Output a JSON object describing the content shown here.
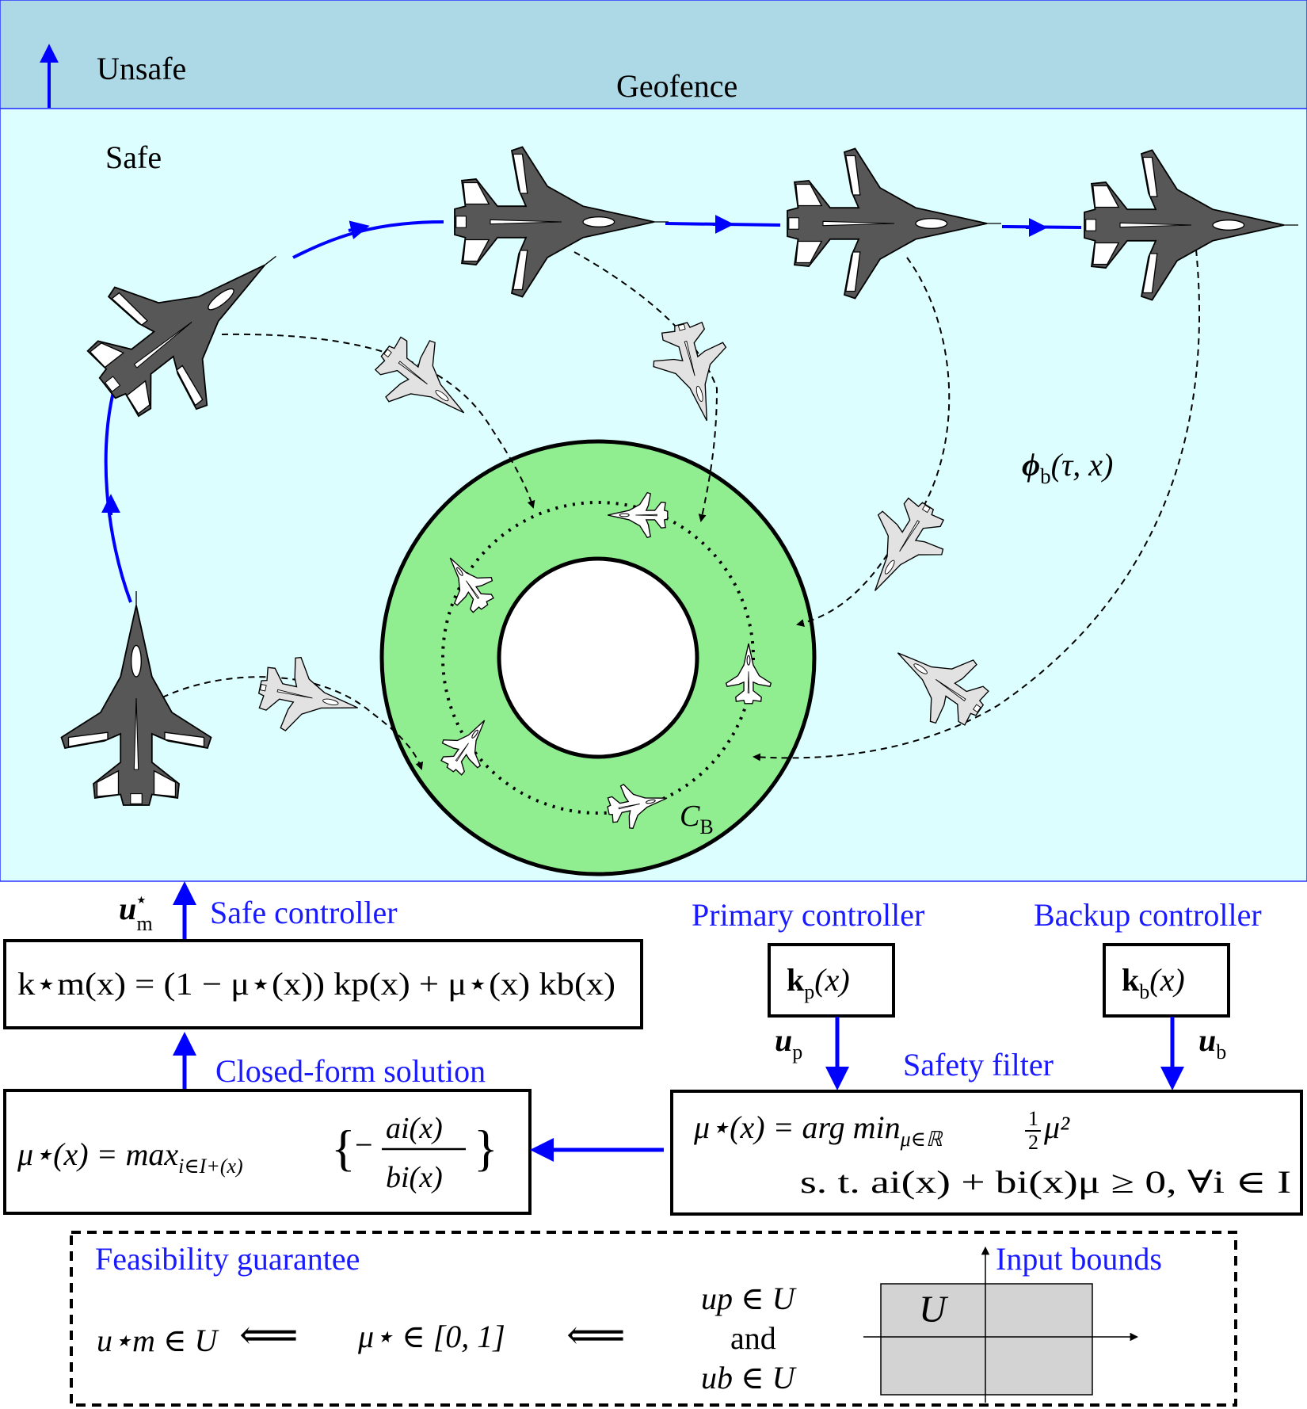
{
  "regions": {
    "unsafe_label": "Unsafe",
    "geofence_label": "Geofence",
    "safe_label": "Safe"
  },
  "trajectory": {
    "backup_flow_main": "ϕ",
    "backup_flow_sub": "b",
    "backup_flow_args": "(τ, x)"
  },
  "backup_set": {
    "main": "C",
    "sub": "B"
  },
  "controllers": {
    "safe_title": "Safe controller",
    "primary_title": "Primary controller",
    "backup_title": "Backup controller",
    "closed_form_title": "Closed-form solution",
    "safety_filter_title": "Safety filter"
  },
  "signals": {
    "u_m": "u",
    "u_m_sup": "⋆",
    "u_m_sub": "m",
    "u_p": "u",
    "u_p_sub": "p",
    "u_b": "u",
    "u_b_sub": "b"
  },
  "boxes": {
    "kp_main": "k",
    "kp_sub": "p",
    "kp_args": "(x)",
    "kb_main": "k",
    "kb_sub": "b",
    "kb_args": "(x)",
    "km_formula": "k⋆m(x) = (1 − μ⋆(x)) kp(x) + μ⋆(x) kb(x)",
    "closed_form_left": "μ⋆(x) = max",
    "closed_form_sub": "i∈I+(x)",
    "closed_form_num": "ai(x)",
    "closed_form_den": "bi(x)",
    "filter_line1": "μ⋆(x) = arg min",
    "filter_line1_sub": "μ∈ℝ",
    "filter_line1_obj": "μ²",
    "filter_half_num": "1",
    "filter_half_den": "2",
    "filter_line2": "s. t.  ai(x) + bi(x)μ ≥ 0,  ∀i ∈ I"
  },
  "feasibility": {
    "title": "Feasibility guarantee",
    "input_bounds": "Input bounds",
    "set_symbol": "U",
    "result": "u⋆m ∈ U",
    "mu_range": "μ⋆ ∈ [0,  1]",
    "cond1": "up ∈ U",
    "cond_and": "and",
    "cond2": "ub ∈ U",
    "implies": "⟸"
  },
  "colors": {
    "unsafe_fill": "#add8e6",
    "safe_fill": "#dcfefe",
    "backup_set_fill": "#90ee90",
    "text_accent": "#1a1aff",
    "arrow_blue": "#0000ff",
    "plane_dark": "#575757",
    "plane_light": "#e2e2e2",
    "input_set_fill": "#d3d3d3"
  }
}
